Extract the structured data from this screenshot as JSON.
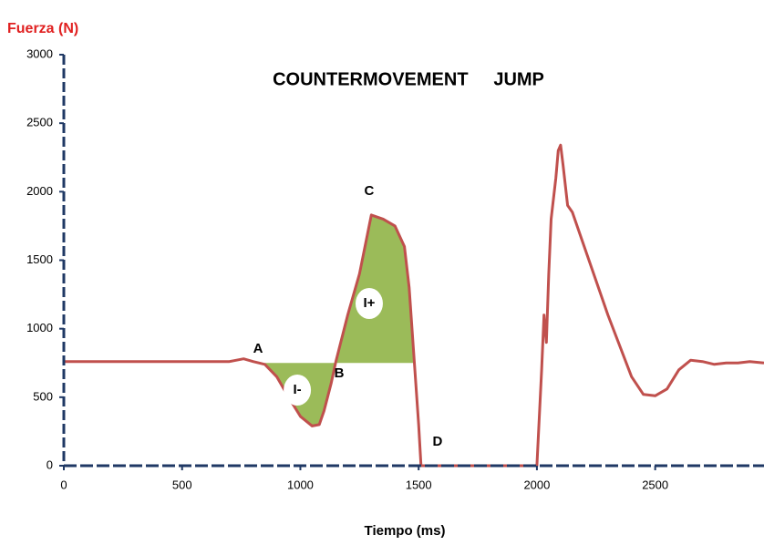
{
  "chart_data": {
    "type": "line",
    "title": "COUNTERMOVEMENT     JUMP",
    "y_label": "Fuerza (N)",
    "x_label": "Tiempo (ms)",
    "color": "#c0504d",
    "x": [
      0,
      200,
      400,
      600,
      700,
      760,
      800,
      850,
      900,
      950,
      1000,
      1050,
      1080,
      1100,
      1130,
      1150,
      1200,
      1250,
      1300,
      1350,
      1400,
      1440,
      1460,
      1480,
      1500,
      1510,
      1700,
      1900,
      2000,
      2020,
      2030,
      2040,
      2050,
      2060,
      2070,
      2080,
      2090,
      2100,
      2110,
      2130,
      2150,
      2200,
      2300,
      2400,
      2450,
      2500,
      2550,
      2600,
      2650,
      2700,
      2750,
      2800,
      2850,
      2900,
      2960
    ],
    "values": [
      760,
      760,
      760,
      760,
      760,
      780,
      760,
      740,
      650,
      500,
      360,
      290,
      300,
      400,
      600,
      760,
      1100,
      1400,
      1830,
      1800,
      1750,
      1600,
      1300,
      800,
      300,
      0,
      0,
      0,
      0,
      700,
      1100,
      900,
      1400,
      1800,
      1950,
      2100,
      2300,
      2340,
      2200,
      1900,
      1850,
      1600,
      1100,
      650,
      520,
      510,
      560,
      700,
      770,
      760,
      740,
      750,
      750,
      760,
      750
    ],
    "baseline": 750,
    "fill_color": "#9bbb59",
    "regions": [
      {
        "label": "I-",
        "x": [
          850,
          1150
        ],
        "label_at": [
          987,
          552
        ]
      },
      {
        "label": "I+",
        "x": [
          1150,
          1478
        ],
        "label_at": [
          1291,
          1184
        ]
      }
    ],
    "annotations": [
      {
        "text": "A",
        "at": [
          821,
          852
        ]
      },
      {
        "text": "B",
        "at": [
          1164,
          672
        ]
      },
      {
        "text": "C",
        "at": [
          1291,
          2003
        ]
      },
      {
        "text": "D",
        "at": [
          1580,
          173
        ]
      }
    ],
    "xlim": [
      0,
      2960
    ],
    "ylim": [
      0,
      3000
    ],
    "xticks": [
      0,
      500,
      1000,
      1500,
      2000,
      2500
    ],
    "yticks": [
      0,
      500,
      1000,
      1500,
      2000,
      2500,
      3000
    ]
  }
}
